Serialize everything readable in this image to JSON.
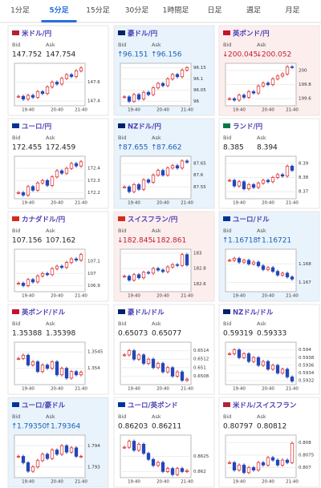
{
  "tabs": [
    "1分足",
    "5分足",
    "15分足",
    "30分足",
    "1時間足",
    "日足",
    "週足",
    "月足"
  ],
  "active_tab": 1,
  "bid_label": "Bid",
  "ask_label": "Ask",
  "time_labels": [
    "19:40",
    "20:40",
    "21:40"
  ],
  "cards": [
    {
      "name": "米ドル/円",
      "flag": "#b22234",
      "trend": null,
      "bid": "147.752",
      "ask": "147.754",
      "chart": {
        "type": "candlestick",
        "ylim": [
          147.35,
          147.8
        ],
        "yticks": [
          147.6,
          147.4
        ],
        "closes": [
          147.45,
          147.42,
          147.46,
          147.44,
          147.5,
          147.48,
          147.55,
          147.6,
          147.58,
          147.64,
          147.68,
          147.66,
          147.72,
          147.75
        ]
      }
    },
    {
      "name": "豪ドル/円",
      "flag": "#012169",
      "trend": "up",
      "bid": "96.151",
      "ask": "96.156",
      "chart": {
        "type": "candlestick",
        "ylim": [
          95.98,
          96.17
        ],
        "yticks": [
          96.15,
          96.1,
          96.05,
          96
        ],
        "closes": [
          96.02,
          96.0,
          96.03,
          96.01,
          96.04,
          96.03,
          96.06,
          96.08,
          96.07,
          96.1,
          96.12,
          96.11,
          96.14,
          96.15
        ]
      }
    },
    {
      "name": "英ポンド/円",
      "flag": "#c8102e",
      "trend": "down",
      "bid": "200.045",
      "ask": "200.052",
      "chart": {
        "type": "candlestick",
        "ylim": [
          199.5,
          200.1
        ],
        "yticks": [
          200,
          199.8,
          199.6
        ],
        "closes": [
          199.6,
          199.58,
          199.65,
          199.62,
          199.7,
          199.68,
          199.78,
          199.82,
          199.8,
          199.88,
          199.92,
          199.95,
          200.05,
          200.045
        ]
      }
    },
    {
      "name": "ユーロ/円",
      "flag": "#003399",
      "trend": null,
      "bid": "172.455",
      "ask": "172.459",
      "chart": {
        "type": "candlestick",
        "ylim": [
          172.15,
          172.5
        ],
        "yticks": [
          172.4,
          172.3,
          172.2
        ],
        "closes": [
          172.2,
          172.18,
          172.25,
          172.22,
          172.28,
          172.3,
          172.26,
          172.33,
          172.38,
          172.36,
          172.4,
          172.44,
          172.42,
          172.455
        ]
      }
    },
    {
      "name": "NZドル/円",
      "flag": "#012169",
      "trend": "up",
      "bid": "87.655",
      "ask": "87.662",
      "chart": {
        "type": "candlestick",
        "ylim": [
          87.5,
          87.68
        ],
        "yticks": [
          87.65,
          87.6,
          87.55
        ],
        "closes": [
          87.55,
          87.53,
          87.56,
          87.54,
          87.58,
          87.57,
          87.6,
          87.62,
          87.6,
          87.63,
          87.64,
          87.63,
          87.66,
          87.655
        ]
      }
    },
    {
      "name": "ランド/円",
      "flag": "#007a4d",
      "trend": null,
      "bid": "8.385",
      "ask": "8.394",
      "chart": {
        "type": "candlestick",
        "ylim": [
          8.365,
          8.395
        ],
        "yticks": [
          8.39,
          8.38,
          8.37
        ],
        "closes": [
          8.378,
          8.374,
          8.377,
          8.372,
          8.375,
          8.373,
          8.376,
          8.378,
          8.377,
          8.38,
          8.382,
          8.381,
          8.388,
          8.385
        ]
      }
    },
    {
      "name": "カナダドル/円",
      "flag": "#d52b1e",
      "trend": null,
      "bid": "107.156",
      "ask": "107.162",
      "chart": {
        "type": "candlestick",
        "ylim": [
          106.85,
          107.2
        ],
        "yticks": [
          107.1,
          107,
          106.9
        ],
        "closes": [
          106.92,
          106.9,
          106.95,
          106.93,
          106.98,
          107.0,
          106.99,
          107.04,
          107.06,
          107.05,
          107.09,
          107.12,
          107.11,
          107.156
        ]
      }
    },
    {
      "name": "スイスフラン/円",
      "flag": "#d52b1e",
      "trend": "down",
      "bid": "182.845",
      "ask": "182.861",
      "chart": {
        "type": "candlestick",
        "ylim": [
          182.5,
          183.05
        ],
        "yticks": [
          183,
          182.8,
          182.6
        ],
        "closes": [
          182.7,
          182.65,
          182.72,
          182.68,
          182.75,
          182.74,
          182.8,
          182.78,
          182.76,
          182.82,
          182.85,
          182.84,
          182.98,
          182.845
        ]
      }
    },
    {
      "name": "ユーロ/ドル",
      "flag": "#003399",
      "trend": "up",
      "bid": "1.16718",
      "ask": "1.16721",
      "chart": {
        "type": "candlestick",
        "ylim": [
          1.1665,
          1.1688
        ],
        "yticks": [
          1.168,
          1.167
        ],
        "closes": [
          1.1682,
          1.1683,
          1.1681,
          1.1682,
          1.168,
          1.1681,
          1.1679,
          1.1677,
          1.1678,
          1.1676,
          1.1674,
          1.1675,
          1.1673,
          1.16718
        ]
      }
    },
    {
      "name": "英ポンド/ドル",
      "flag": "#c8102e",
      "trend": null,
      "bid": "1.35388",
      "ask": "1.35398",
      "chart": {
        "type": "candlestick",
        "ylim": [
          1.3535,
          1.3548
        ],
        "yticks": [
          1.3545,
          1.354
        ],
        "closes": [
          1.3543,
          1.3544,
          1.3541,
          1.3542,
          1.3539,
          1.3541,
          1.354,
          1.3542,
          1.3538,
          1.354,
          1.3537,
          1.3539,
          1.3538,
          1.35388
        ]
      }
    },
    {
      "name": "豪ドル/ドル",
      "flag": "#012169",
      "trend": null,
      "bid": "0.65073",
      "ask": "0.65077",
      "chart": {
        "type": "candlestick",
        "ylim": [
          0.6506,
          0.6516
        ],
        "yticks": [
          0.6514,
          0.6512,
          0.651,
          0.6508
        ],
        "closes": [
          0.6513,
          0.6514,
          0.6512,
          0.6513,
          0.6511,
          0.6512,
          0.651,
          0.6511,
          0.6509,
          0.651,
          0.6508,
          0.6509,
          0.6507,
          0.65073
        ]
      }
    },
    {
      "name": "NZドル/ドル",
      "flag": "#012169",
      "trend": null,
      "bid": "0.59319",
      "ask": "0.59333",
      "chart": {
        "type": "candlestick",
        "ylim": [
          0.5931,
          0.5942
        ],
        "yticks": [
          0.594,
          0.5938,
          0.5936,
          0.5934,
          0.5932
        ],
        "closes": [
          0.5939,
          0.594,
          0.5938,
          0.5939,
          0.5937,
          0.5938,
          0.5936,
          0.5937,
          0.5935,
          0.5936,
          0.5934,
          0.5935,
          0.5933,
          0.59319
        ]
      }
    },
    {
      "name": "ユーロ/豪ドル",
      "flag": "#003399",
      "trend": "up",
      "bid": "1.79350",
      "ask": "1.79364",
      "chart": {
        "type": "candlestick",
        "ylim": [
          1.7925,
          1.7945
        ],
        "yticks": [
          1.794,
          1.793
        ],
        "closes": [
          1.7935,
          1.7932,
          1.7928,
          1.793,
          1.7933,
          1.7936,
          1.7934,
          1.7938,
          1.7936,
          1.794,
          1.7937,
          1.7939,
          1.7935,
          1.7935
        ]
      }
    },
    {
      "name": "ユーロ/英ポンド",
      "flag": "#003399",
      "trend": null,
      "bid": "0.86203",
      "ask": "0.86211",
      "chart": {
        "type": "candlestick",
        "ylim": [
          0.8618,
          0.8632
        ],
        "yticks": [
          0.8625,
          0.862
        ],
        "closes": [
          0.8628,
          0.863,
          0.8627,
          0.8629,
          0.8626,
          0.8624,
          0.8622,
          0.8623,
          0.862,
          0.8621,
          0.8619,
          0.8621,
          0.862,
          0.86203
        ]
      }
    },
    {
      "name": "米ドル/スイスフラン",
      "flag": "#b22234",
      "trend": null,
      "bid": "0.80797",
      "ask": "0.80812",
      "chart": {
        "type": "candlestick",
        "ylim": [
          0.8066,
          0.8083
        ],
        "yticks": [
          0.808,
          0.8075,
          0.807
        ],
        "closes": [
          0.8072,
          0.8069,
          0.8071,
          0.8068,
          0.807,
          0.8069,
          0.8072,
          0.8071,
          0.8074,
          0.8073,
          0.8071,
          0.8073,
          0.8072,
          0.80797
        ]
      }
    }
  ]
}
